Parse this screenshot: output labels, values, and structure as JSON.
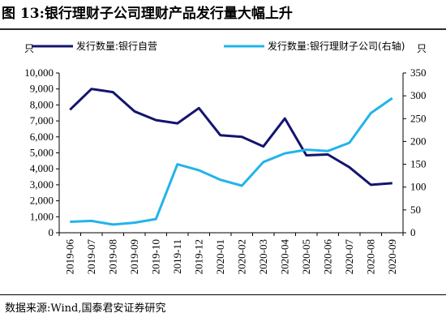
{
  "title": "图 13:银行理财子公司理财产品发行量大幅上升",
  "source": "数据来源:Wind,国泰君安证券研究",
  "chart_data": {
    "type": "line",
    "categories": [
      "2019-06",
      "2019-07",
      "2019-08",
      "2019-09",
      "2019-10",
      "2019-11",
      "2019-12",
      "2020-01",
      "2020-02",
      "2020-03",
      "2020-04",
      "2020-05",
      "2020-06",
      "2020-07",
      "2020-08",
      "2020-09"
    ],
    "series": [
      {
        "name": "发行数量:银行自营",
        "axis": "left",
        "color": "#14146e",
        "values": [
          7700,
          9000,
          8800,
          7600,
          7050,
          6850,
          7800,
          6100,
          6000,
          5400,
          7150,
          4850,
          4900,
          4100,
          3000,
          3100
        ]
      },
      {
        "name": "发行数量:银行理财子公司(右轴)",
        "axis": "right",
        "color": "#22b4ea",
        "values": [
          24,
          26,
          18,
          22,
          30,
          150,
          137,
          116,
          103,
          155,
          174,
          182,
          179,
          197,
          262,
          295
        ]
      }
    ],
    "y_left": {
      "unit": "只",
      "range": [
        0,
        10000
      ],
      "ticks": [
        "0",
        "1,000",
        "2,000",
        "3,000",
        "4,000",
        "5,000",
        "6,000",
        "7,000",
        "8,000",
        "9,000",
        "10,000"
      ]
    },
    "y_right": {
      "unit": "只",
      "range": [
        0,
        350
      ],
      "ticks": [
        "0",
        "50",
        "100",
        "150",
        "200",
        "250",
        "300",
        "350"
      ]
    },
    "legend": "top"
  }
}
